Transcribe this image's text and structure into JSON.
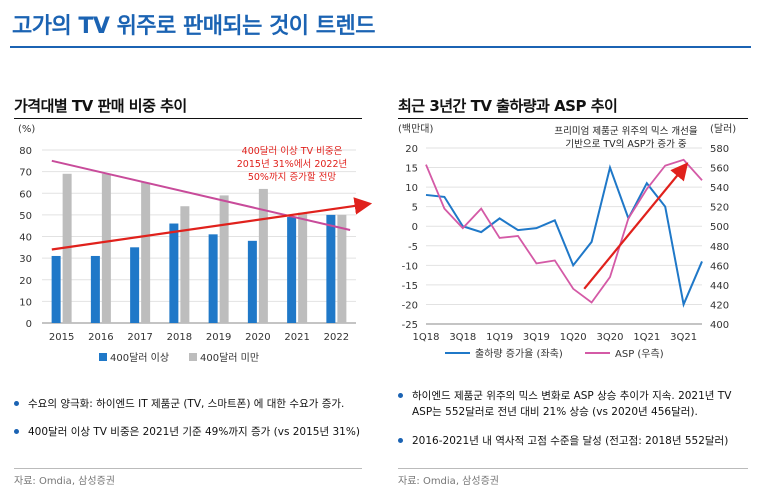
{
  "header": {
    "title": "고가의 TV 위주로 판매되는 것이 트렌드"
  },
  "colors": {
    "accent": "#1b63b3",
    "bar_dark": "#1f78c8",
    "bar_light": "#bdbdbd",
    "trend_red": "#e0211c",
    "trend_pink": "#c84b9a",
    "asp_pink": "#d45aa6"
  },
  "left": {
    "title": "가격대별 TV 판매 비중 추이",
    "bullets": [
      "수요의 양극화: 하이엔드 IT 제품군 (TV, 스마트폰) 에 대한 수요가 증가.",
      "400달러 이상 TV 비중은 2021년 기준 49%까지 증가 (vs 2015년 31%)"
    ],
    "source": "자료: Omdia, 삼성증권"
  },
  "right": {
    "title": "최근 3년간 TV 출하량과 ASP 추이",
    "bullets": [
      "하이엔드 제품군 위주의 믹스 변화로 ASP 상승 추이가 지속. 2021년 TV ASP는 552달러로 전년 대비 21% 상승 (vs 2020년 456달러).",
      "2016-2021년 내 역사적 고점 수준을 달성 (전고점: 2018년 552달러)"
    ],
    "source": "자료: Omdia, 삼성증권"
  },
  "chart_data": [
    {
      "type": "bar",
      "unit_label": "(%)",
      "categories": [
        "2015",
        "2016",
        "2017",
        "2018",
        "2019",
        "2020",
        "2021",
        "2022"
      ],
      "ylim": [
        0,
        80
      ],
      "yticks": [
        0,
        10,
        20,
        30,
        40,
        50,
        60,
        70,
        80
      ],
      "series": [
        {
          "name": "400달러 이상",
          "values": [
            31,
            31,
            35,
            46,
            41,
            38,
            49,
            50
          ]
        },
        {
          "name": "400달러 미만",
          "values": [
            69,
            69,
            65,
            54,
            59,
            62,
            51,
            50
          ]
        }
      ],
      "annotation": [
        "400달러 이상 TV 비중은",
        "2015년 31%에서 2022년",
        "50%까지 증가할 전망"
      ],
      "grid": true,
      "legend": "bottom"
    },
    {
      "type": "line",
      "left_unit": "(백만대)",
      "right_unit": "(달러)",
      "x": [
        "1Q18",
        "2Q18",
        "3Q18",
        "4Q18",
        "1Q19",
        "2Q19",
        "3Q19",
        "4Q19",
        "1Q20",
        "2Q20",
        "3Q20",
        "4Q20",
        "1Q21",
        "2Q21",
        "3Q21",
        "4Q21"
      ],
      "xtick_labels": [
        "1Q18",
        "3Q18",
        "1Q19",
        "3Q19",
        "1Q20",
        "3Q20",
        "1Q21",
        "3Q21"
      ],
      "ylim_left": [
        -25,
        20
      ],
      "yticks_left": [
        20,
        15,
        10,
        5,
        0,
        -5,
        -10,
        -15,
        -20,
        -25
      ],
      "ylim_right": [
        400,
        580
      ],
      "yticks_right": [
        580,
        560,
        540,
        520,
        500,
        480,
        460,
        440,
        420,
        400
      ],
      "series": [
        {
          "name": "출하량 증가율 (좌축)",
          "axis": "left",
          "values": [
            8,
            7.5,
            0,
            -1.5,
            2,
            -1,
            -0.5,
            1.5,
            -10,
            -4,
            15,
            2,
            11,
            5,
            -20,
            -9
          ]
        },
        {
          "name": "ASP (우측)",
          "axis": "right",
          "values": [
            563,
            518,
            498,
            518,
            488,
            490,
            462,
            465,
            436,
            422,
            448,
            508,
            538,
            562,
            568,
            547
          ]
        }
      ],
      "annotation": [
        "프리미엄 제품군 위주의 믹스 개선을",
        "기반으로 TV의 ASP가 증가 중"
      ],
      "grid": true,
      "legend": "bottom"
    }
  ]
}
